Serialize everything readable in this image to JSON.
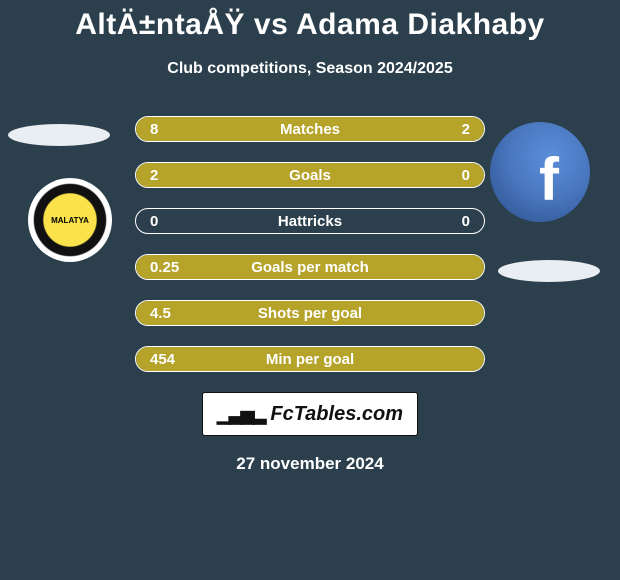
{
  "title": "AltÄ±ntaÅŸ vs Adama Diakhaby",
  "subtitle": "Club competitions, Season 2024/2025",
  "date": "27 november 2024",
  "footer_brand": "FcTables.com",
  "colors": {
    "background": "#2b3f4c",
    "bar_fill": "#b5a32a",
    "bar_border": "#ffffff",
    "text": "#ffffff"
  },
  "bars": [
    {
      "label": "Matches",
      "left_val": "8",
      "right_val": "2",
      "left_pct": 80,
      "right_pct": 20
    },
    {
      "label": "Goals",
      "left_val": "2",
      "right_val": "0",
      "left_pct": 100,
      "right_pct": 0
    },
    {
      "label": "Hattricks",
      "left_val": "0",
      "right_val": "0",
      "left_pct": 0,
      "right_pct": 0
    },
    {
      "label": "Goals per match",
      "left_val": "0.25",
      "right_val": "",
      "left_pct": 100,
      "right_pct": 0
    },
    {
      "label": "Shots per goal",
      "left_val": "4.5",
      "right_val": "",
      "left_pct": 100,
      "right_pct": 0
    },
    {
      "label": "Min per goal",
      "left_val": "454",
      "right_val": "",
      "left_pct": 100,
      "right_pct": 0
    }
  ],
  "left_club_text": "MALATYA"
}
